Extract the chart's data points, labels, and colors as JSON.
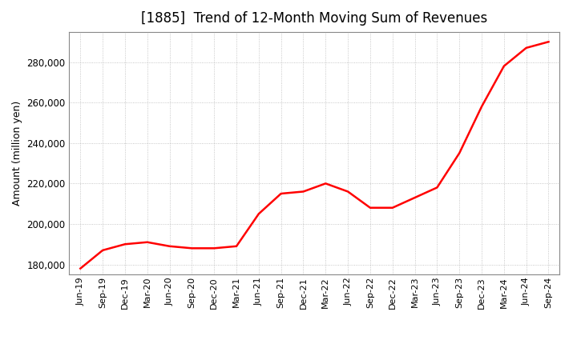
{
  "title": "[1885]  Trend of 12-Month Moving Sum of Revenues",
  "ylabel": "Amount (million yen)",
  "line_color": "#ff0000",
  "line_width": 1.8,
  "background_color": "#ffffff",
  "plot_bg_color": "#ffffff",
  "grid_color": "#999999",
  "ylim": [
    175000,
    295000
  ],
  "yticks": [
    180000,
    200000,
    220000,
    240000,
    260000,
    280000
  ],
  "x_labels": [
    "Jun-19",
    "Sep-19",
    "Dec-19",
    "Mar-20",
    "Jun-20",
    "Sep-20",
    "Dec-20",
    "Mar-21",
    "Jun-21",
    "Sep-21",
    "Dec-21",
    "Mar-22",
    "Jun-22",
    "Sep-22",
    "Dec-22",
    "Mar-23",
    "Jun-23",
    "Sep-23",
    "Dec-23",
    "Mar-24",
    "Jun-24",
    "Sep-24"
  ],
  "values": [
    178000,
    187000,
    190000,
    191000,
    189000,
    188000,
    188000,
    189000,
    205000,
    215000,
    216000,
    220000,
    216000,
    208000,
    208000,
    213000,
    218000,
    235000,
    258000,
    278000,
    287000,
    290000
  ]
}
